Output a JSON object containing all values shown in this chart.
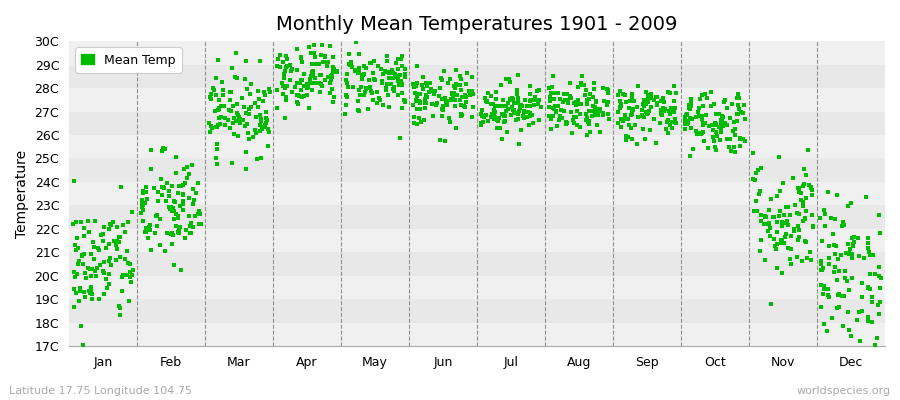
{
  "title": "Monthly Mean Temperatures 1901 - 2009",
  "ylabel": "Temperature",
  "subtitle_left": "Latitude 17.75 Longitude 104.75",
  "subtitle_right": "worldspecies.org",
  "legend_label": "Mean Temp",
  "dot_color": "#00bb00",
  "background_color": "#ffffff",
  "plot_bg_color": "#ffffff",
  "stripe_color_odd": "#f0f0f0",
  "stripe_color_even": "#e8e8e8",
  "ylim": [
    17,
    30
  ],
  "yticks": [
    17,
    18,
    19,
    20,
    21,
    22,
    23,
    24,
    25,
    26,
    27,
    28,
    29,
    30
  ],
  "ytick_labels": [
    "17C",
    "18C",
    "19C",
    "20C",
    "21C",
    "22C",
    "23C",
    "24C",
    "25C",
    "26C",
    "27C",
    "28C",
    "29C",
    "30C"
  ],
  "months": [
    "Jan",
    "Feb",
    "Mar",
    "Apr",
    "May",
    "Jun",
    "Jul",
    "Aug",
    "Sep",
    "Oct",
    "Nov",
    "Dec"
  ],
  "month_mean_temps": [
    20.5,
    22.8,
    27.0,
    28.6,
    28.3,
    27.5,
    27.2,
    27.1,
    27.0,
    26.6,
    22.5,
    20.2
  ],
  "month_std_temps": [
    1.3,
    1.2,
    0.9,
    0.7,
    0.7,
    0.6,
    0.55,
    0.55,
    0.6,
    0.7,
    1.3,
    1.6
  ],
  "n_years": 109,
  "seed": 42,
  "dot_size": 6,
  "dot_marker": "s"
}
